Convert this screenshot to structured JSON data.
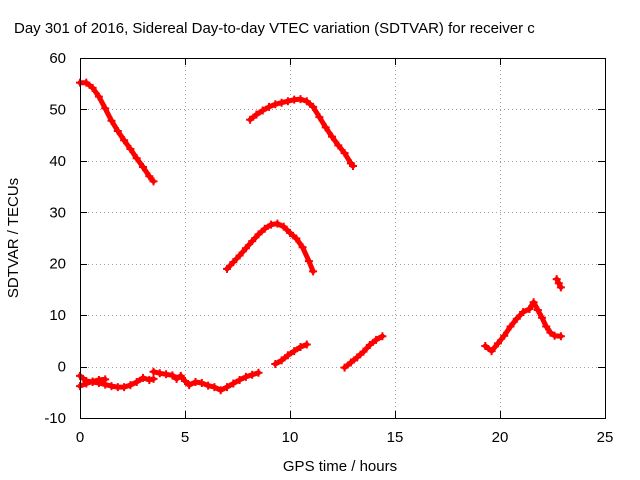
{
  "chart_data": {
    "type": "scatter",
    "title": "Day 301 of 2016, Sidereal Day-to-day VTEC variation (SDTVAR) for receiver c",
    "xlabel": "GPS time / hours",
    "ylabel": "SDTVAR / TECUs",
    "xlim": [
      0,
      25
    ],
    "ylim": [
      -10,
      60
    ],
    "xticks": [
      0,
      5,
      10,
      15,
      20,
      25
    ],
    "yticks": [
      -10,
      0,
      10,
      20,
      30,
      40,
      50,
      60
    ],
    "grid": true,
    "marker": "plus",
    "colors": {
      "series": "#ff0000",
      "axis": "#000000",
      "grid": "#a0a0a0"
    },
    "series": [
      {
        "points": [
          [
            0.0,
            55.2
          ],
          [
            0.3,
            55.2
          ],
          [
            0.6,
            54.2
          ],
          [
            0.9,
            52.5
          ],
          [
            1.2,
            50.2
          ],
          [
            1.5,
            47.8
          ],
          [
            1.8,
            45.8
          ],
          [
            2.1,
            44.0
          ],
          [
            2.4,
            42.3
          ],
          [
            2.7,
            40.5
          ],
          [
            3.0,
            38.8
          ],
          [
            3.3,
            37.0
          ],
          [
            3.5,
            36.0
          ]
        ]
      },
      {
        "points": [
          [
            8.1,
            48.0
          ],
          [
            8.4,
            49.0
          ],
          [
            8.7,
            49.8
          ],
          [
            9.0,
            50.5
          ],
          [
            9.3,
            51.0
          ],
          [
            9.6,
            51.3
          ],
          [
            9.9,
            51.6
          ],
          [
            10.2,
            51.9
          ],
          [
            10.5,
            52.0
          ],
          [
            10.8,
            51.6
          ],
          [
            11.1,
            50.5
          ],
          [
            11.4,
            48.5
          ],
          [
            11.7,
            46.5
          ],
          [
            12.0,
            44.7
          ],
          [
            12.3,
            43.0
          ],
          [
            12.6,
            41.5
          ],
          [
            12.9,
            39.5
          ],
          [
            13.0,
            39.0
          ]
        ]
      },
      {
        "points": [
          [
            7.0,
            19.0
          ],
          [
            7.3,
            20.3
          ],
          [
            7.6,
            21.6
          ],
          [
            7.9,
            23.0
          ],
          [
            8.2,
            24.4
          ],
          [
            8.5,
            25.7
          ],
          [
            8.8,
            26.8
          ],
          [
            9.1,
            27.6
          ],
          [
            9.4,
            27.8
          ],
          [
            9.7,
            27.2
          ],
          [
            10.0,
            26.0
          ],
          [
            10.3,
            24.9
          ],
          [
            10.6,
            23.2
          ],
          [
            10.9,
            20.5
          ],
          [
            11.1,
            18.5
          ]
        ]
      },
      {
        "points": [
          [
            0.0,
            -1.8
          ],
          [
            0.3,
            -2.8
          ],
          [
            0.6,
            -3.0
          ],
          [
            0.9,
            -3.2
          ],
          [
            1.2,
            -3.5
          ],
          [
            1.5,
            -3.8
          ],
          [
            1.8,
            -4.0
          ],
          [
            2.1,
            -4.0
          ],
          [
            2.4,
            -3.6
          ],
          [
            2.7,
            -3.0
          ],
          [
            3.0,
            -2.2
          ],
          [
            3.3,
            -2.6
          ],
          [
            3.5,
            -2.4
          ]
        ]
      },
      {
        "points": [
          [
            0.0,
            -3.8
          ],
          [
            0.3,
            -3.3
          ],
          [
            0.6,
            -2.9
          ],
          [
            0.9,
            -2.6
          ],
          [
            1.2,
            -2.5
          ]
        ]
      },
      {
        "points": [
          [
            3.5,
            -1.0
          ],
          [
            3.8,
            -1.3
          ],
          [
            4.1,
            -1.5
          ],
          [
            4.4,
            -1.7
          ],
          [
            4.6,
            -2.4
          ],
          [
            4.8,
            -1.8
          ],
          [
            5.0,
            -2.8
          ],
          [
            5.2,
            -3.6
          ],
          [
            5.5,
            -3.0
          ],
          [
            5.8,
            -3.2
          ],
          [
            6.1,
            -3.7
          ],
          [
            6.4,
            -4.0
          ],
          [
            6.7,
            -4.6
          ],
          [
            7.0,
            -4.0
          ],
          [
            7.3,
            -3.3
          ],
          [
            7.6,
            -2.6
          ],
          [
            7.9,
            -2.0
          ],
          [
            8.2,
            -1.6
          ],
          [
            8.5,
            -1.2
          ]
        ]
      },
      {
        "points": [
          [
            9.3,
            0.5
          ],
          [
            9.6,
            1.2
          ],
          [
            9.9,
            2.2
          ],
          [
            10.2,
            3.0
          ],
          [
            10.5,
            3.8
          ],
          [
            10.8,
            4.3
          ]
        ]
      },
      {
        "points": [
          [
            12.6,
            -0.2
          ],
          [
            12.9,
            0.8
          ],
          [
            13.2,
            1.8
          ],
          [
            13.5,
            2.9
          ],
          [
            13.8,
            4.2
          ],
          [
            14.1,
            5.2
          ],
          [
            14.4,
            5.9
          ]
        ]
      },
      {
        "points": [
          [
            19.3,
            4.0
          ],
          [
            19.6,
            3.0
          ],
          [
            19.9,
            4.5
          ],
          [
            20.2,
            6.0
          ],
          [
            20.5,
            7.8
          ],
          [
            20.8,
            9.3
          ],
          [
            21.1,
            10.6
          ],
          [
            21.4,
            11.2
          ],
          [
            21.6,
            12.5
          ],
          [
            21.8,
            11.0
          ],
          [
            22.0,
            9.5
          ],
          [
            22.2,
            7.8
          ],
          [
            22.4,
            6.6
          ],
          [
            22.6,
            6.0
          ],
          [
            22.9,
            5.9
          ]
        ]
      },
      {
        "points": [
          [
            22.7,
            17.0
          ],
          [
            22.8,
            16.2
          ],
          [
            22.9,
            15.4
          ]
        ]
      }
    ]
  }
}
